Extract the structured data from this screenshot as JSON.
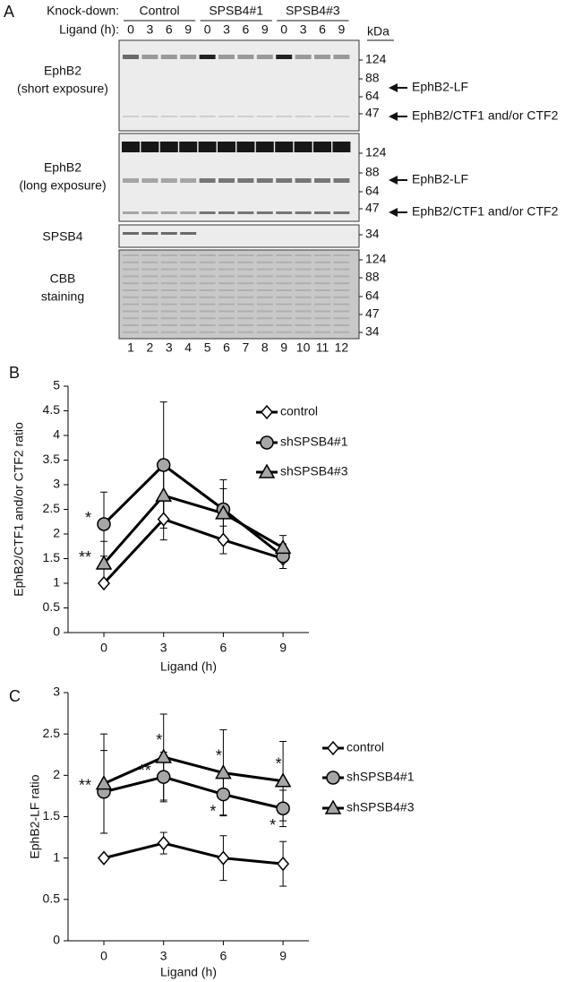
{
  "panel_a": {
    "label": "A",
    "knockdown_label": "Knock-down:",
    "groups": [
      "Control",
      "SPSB4#1",
      "SPSB4#3"
    ],
    "ligand_label": "Ligand (h):",
    "ligand_times": [
      0,
      3,
      6,
      9,
      0,
      3,
      6,
      9,
      0,
      3,
      6,
      9
    ],
    "kda_label": "kDa",
    "blots": [
      {
        "label": [
          "EphB2",
          "(short exposure)"
        ],
        "markers": [
          124,
          88,
          64,
          47
        ],
        "arrows": [
          "EphB2-LF",
          "EphB2/CTF1 and/or CTF2"
        ]
      },
      {
        "label": [
          "EphB2",
          "(long exposure)"
        ],
        "markers": [
          124,
          88,
          64,
          47
        ],
        "arrows": [
          "EphB2-LF",
          "EphB2/CTF1 and/or CTF2"
        ]
      },
      {
        "label": [
          "SPSB4"
        ],
        "markers": [
          34
        ],
        "arrows": []
      },
      {
        "label": [
          "CBB",
          "staining"
        ],
        "markers": [
          124,
          88,
          64,
          47,
          34
        ],
        "arrows": []
      }
    ],
    "lanes": [
      1,
      2,
      3,
      4,
      5,
      6,
      7,
      8,
      9,
      10,
      11,
      12
    ]
  },
  "chart_data": [
    {
      "type": "line",
      "panel": "B",
      "ylabel": "EphB2/CTF1 and/or CTF2 ratio",
      "xlabel": "Ligand (h)",
      "x": [
        0,
        3,
        6,
        9
      ],
      "xlim": [
        -1.8,
        10.3
      ],
      "xticks": [
        0,
        3,
        6,
        9
      ],
      "ylim": [
        0,
        5
      ],
      "yticks": [
        0,
        0.5,
        1,
        1.5,
        2,
        2.5,
        3,
        3.5,
        4,
        4.5,
        5
      ],
      "series": [
        {
          "name": "control",
          "color": "#ffffff",
          "marker": "diamond",
          "values": [
            1.0,
            2.3,
            1.88,
            1.5
          ],
          "errors": [
            null,
            0.42,
            0.28,
            0.2
          ],
          "significance": [
            null,
            null,
            null,
            null
          ]
        },
        {
          "name": "shSPSB4#1",
          "color": "#a6a6a6",
          "marker": "circle",
          "values": [
            2.2,
            3.4,
            2.5,
            1.55
          ],
          "errors": [
            0.65,
            1.28,
            0.6,
            0.25
          ],
          "significance": [
            "*",
            null,
            null,
            null
          ]
        },
        {
          "name": "shSPSB4#3",
          "color": "#a6a6a6",
          "marker": "triangle",
          "values": [
            1.4,
            2.78,
            2.42,
            1.72
          ],
          "errors": [
            0.45,
            0.5,
            0.5,
            0.25
          ],
          "significance": [
            "**",
            null,
            null,
            null
          ]
        }
      ]
    },
    {
      "type": "line",
      "panel": "C",
      "ylabel": "EphB2-LF ratio",
      "xlabel": "Ligand (h)",
      "x": [
        0,
        3,
        6,
        9
      ],
      "xlim": [
        -1.8,
        10.3
      ],
      "xticks": [
        0,
        3,
        6,
        9
      ],
      "ylim": [
        0,
        3
      ],
      "yticks": [
        0,
        0.5,
        1,
        1.5,
        2,
        2.5,
        3
      ],
      "series": [
        {
          "name": "control",
          "color": "#ffffff",
          "marker": "diamond",
          "values": [
            1.0,
            1.18,
            1.0,
            0.93
          ],
          "errors": [
            null,
            0.13,
            0.27,
            0.27
          ],
          "significance": [
            null,
            null,
            null,
            null
          ]
        },
        {
          "name": "shSPSB4#1",
          "color": "#a6a6a6",
          "marker": "circle",
          "values": [
            1.8,
            1.98,
            1.77,
            1.6
          ],
          "errors": [
            0.5,
            0.3,
            0.25,
            0.22
          ],
          "significance": [
            "**",
            "**",
            "*",
            "*"
          ]
        },
        {
          "name": "shSPSB4#3",
          "color": "#a6a6a6",
          "marker": "triangle",
          "values": [
            1.9,
            2.22,
            2.03,
            1.93
          ],
          "errors": [
            0.6,
            0.52,
            0.52,
            0.48
          ],
          "significance": [
            null,
            "*",
            "*",
            "*"
          ]
        }
      ]
    }
  ]
}
